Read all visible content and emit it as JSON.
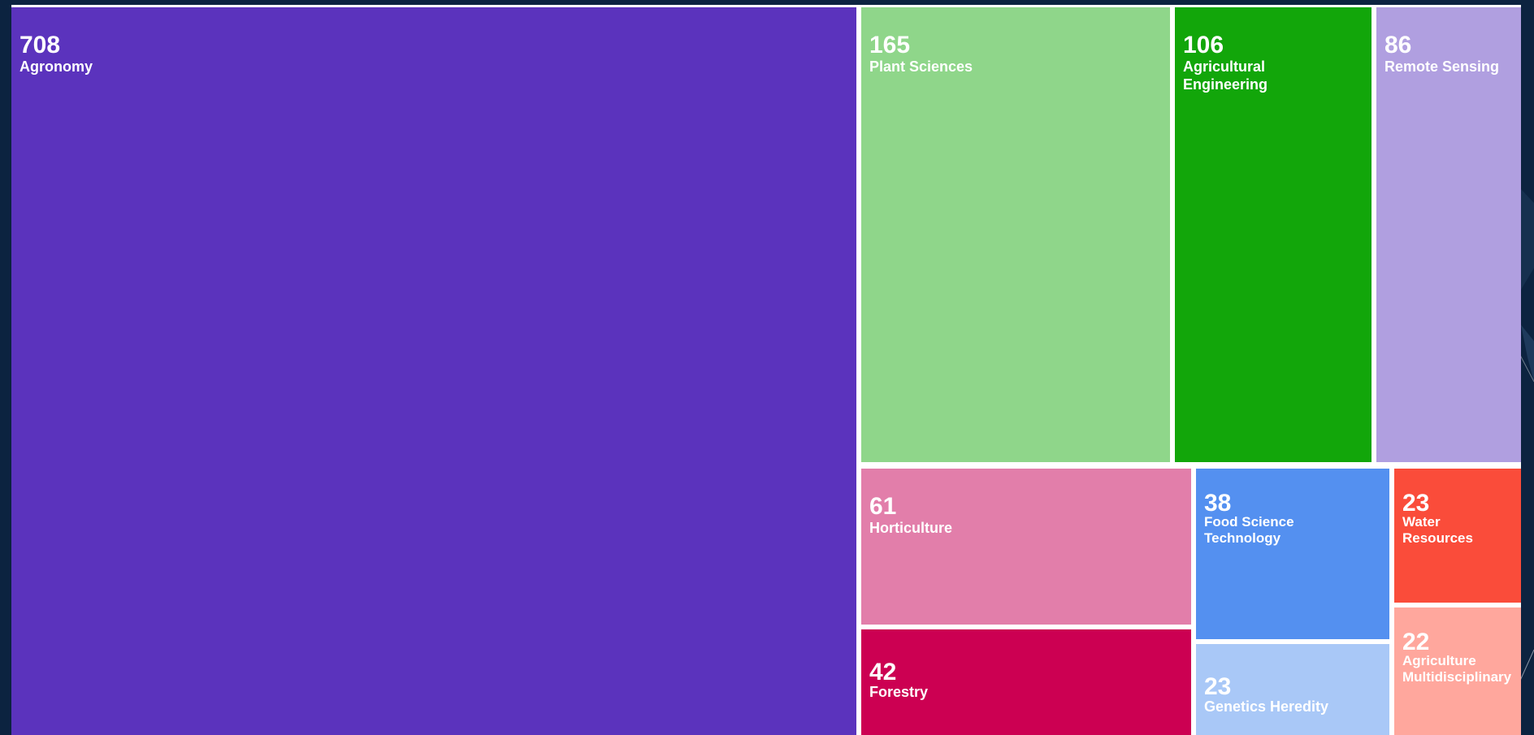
{
  "chart_data": {
    "type": "treemap",
    "title": "",
    "items": [
      {
        "label": "Agronomy",
        "value": 708,
        "color": "#5b33bd"
      },
      {
        "label": "Plant Sciences",
        "value": 165,
        "color": "#8fd68a"
      },
      {
        "label": "Agricultural\nEngineering",
        "value": 106,
        "color": "#12a60a"
      },
      {
        "label": "Remote Sensing",
        "value": 86,
        "color": "#b09fe0"
      },
      {
        "label": "Horticulture",
        "value": 61,
        "color": "#e27eaa"
      },
      {
        "label": "Food Science\nTechnology",
        "value": 38,
        "color": "#5490f0"
      },
      {
        "label": "Water\nResources",
        "value": 23,
        "color": "#fa4c3a"
      },
      {
        "label": "Forestry",
        "value": 42,
        "color": "#cc0052"
      },
      {
        "label": "Genetics Heredity",
        "value": 23,
        "color": "#a9c8f7"
      },
      {
        "label": "Agriculture\nMultidisciplinary",
        "value": 22,
        "color": "#ffa79d"
      }
    ]
  }
}
